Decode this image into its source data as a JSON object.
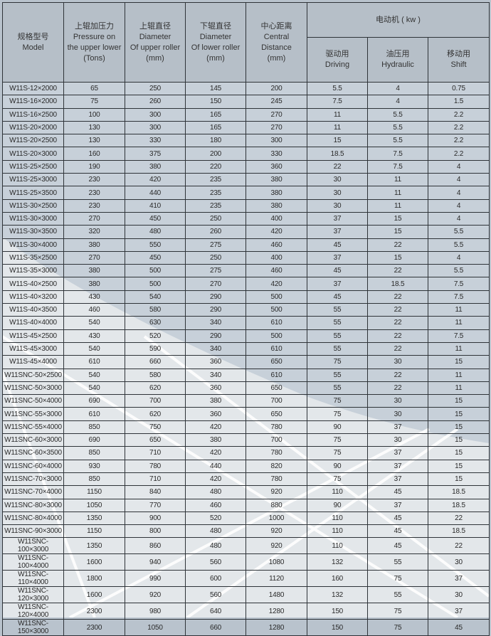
{
  "header": {
    "model": [
      "规格型号",
      "Model"
    ],
    "pressure": [
      "上辊加压力",
      "Pressure on",
      "the upper lower",
      "(Tons)"
    ],
    "upper_diameter": [
      "上辊直径",
      "Diameter",
      "Of upper roller",
      "(mm)"
    ],
    "lower_diameter": [
      "下辊直径",
      "Diameter",
      "Of lower roller",
      "(mm)"
    ],
    "central_distance": [
      "中心距离",
      "Central",
      "Distance",
      "(mm)"
    ],
    "motor": "电动机 ( kw )",
    "driving": [
      "驱动用",
      "Driving"
    ],
    "hydraulic": [
      "油压用",
      "Hydraulic"
    ],
    "shift": [
      "移动用",
      "Shift"
    ]
  },
  "rows": [
    [
      "W11S-12×2000",
      "65",
      "250",
      "145",
      "200",
      "5.5",
      "4",
      "0.75"
    ],
    [
      "W11S-16×2000",
      "75",
      "260",
      "150",
      "245",
      "7.5",
      "4",
      "1.5"
    ],
    [
      "W11S-16×2500",
      "100",
      "300",
      "165",
      "270",
      "11",
      "5.5",
      "2.2"
    ],
    [
      "W11S-20×2000",
      "130",
      "300",
      "165",
      "270",
      "11",
      "5.5",
      "2.2"
    ],
    [
      "W11S-20×2500",
      "130",
      "330",
      "180",
      "300",
      "15",
      "5.5",
      "2.2"
    ],
    [
      "W11S-20×3000",
      "160",
      "375",
      "200",
      "330",
      "18.5",
      "7.5",
      "2.2"
    ],
    [
      "W11S-25×2500",
      "190",
      "380",
      "220",
      "360",
      "22",
      "7.5",
      "4"
    ],
    [
      "W11S-25×3000",
      "230",
      "420",
      "235",
      "380",
      "30",
      "11",
      "4"
    ],
    [
      "W11S-25×3500",
      "230",
      "440",
      "235",
      "380",
      "30",
      "11",
      "4"
    ],
    [
      "W11S-30×2500",
      "230",
      "410",
      "235",
      "380",
      "30",
      "11",
      "4"
    ],
    [
      "W11S-30×3000",
      "270",
      "450",
      "250",
      "400",
      "37",
      "15",
      "4"
    ],
    [
      "W11S-30×3500",
      "320",
      "480",
      "260",
      "420",
      "37",
      "15",
      "5.5"
    ],
    [
      "W11S-30×4000",
      "380",
      "550",
      "275",
      "460",
      "45",
      "22",
      "5.5"
    ],
    [
      "W11S-35×2500",
      "270",
      "450",
      "250",
      "400",
      "37",
      "15",
      "4"
    ],
    [
      "W11S-35×3000",
      "380",
      "500",
      "275",
      "460",
      "45",
      "22",
      "5.5"
    ],
    [
      "W11S-40×2500",
      "380",
      "500",
      "270",
      "420",
      "37",
      "18.5",
      "7.5"
    ],
    [
      "W11S-40×3200",
      "430",
      "540",
      "290",
      "500",
      "45",
      "22",
      "7.5"
    ],
    [
      "W11S-40×3500",
      "460",
      "580",
      "290",
      "500",
      "55",
      "22",
      "11"
    ],
    [
      "W11S-40×4000",
      "540",
      "630",
      "340",
      "610",
      "55",
      "22",
      "11"
    ],
    [
      "W11S-45×2500",
      "430",
      "520",
      "290",
      "500",
      "55",
      "22",
      "7.5"
    ],
    [
      "W11S-45×3000",
      "540",
      "590",
      "340",
      "610",
      "55",
      "22",
      "11"
    ],
    [
      "W11S-45×4000",
      "610",
      "660",
      "360",
      "650",
      "75",
      "30",
      "15"
    ],
    [
      "W11SNC-50×2500",
      "540",
      "580",
      "340",
      "610",
      "55",
      "22",
      "11"
    ],
    [
      "W11SNC-50×3000",
      "540",
      "620",
      "360",
      "650",
      "55",
      "22",
      "11"
    ],
    [
      "W11SNC-50×4000",
      "690",
      "700",
      "380",
      "700",
      "75",
      "30",
      "15"
    ],
    [
      "W11SNC-55×3000",
      "610",
      "620",
      "360",
      "650",
      "75",
      "30",
      "15"
    ],
    [
      "W11SNC-55×4000",
      "850",
      "750",
      "420",
      "780",
      "90",
      "37",
      "15"
    ],
    [
      "W11SNC-60×3000",
      "690",
      "650",
      "380",
      "700",
      "75",
      "30",
      "15"
    ],
    [
      "W11SNC-60×3500",
      "850",
      "710",
      "420",
      "780",
      "75",
      "37",
      "15"
    ],
    [
      "W11SNC-60×4000",
      "930",
      "780",
      "440",
      "820",
      "90",
      "37",
      "15"
    ],
    [
      "W11SNC-70×3000",
      "850",
      "710",
      "420",
      "780",
      "75",
      "37",
      "15"
    ],
    [
      "W11SNC-70×4000",
      "1150",
      "840",
      "480",
      "920",
      "110",
      "45",
      "18.5"
    ],
    [
      "W11SNC-80×3000",
      "1050",
      "770",
      "460",
      "880",
      "90",
      "37",
      "18.5"
    ],
    [
      "W11SNC-80×4000",
      "1350",
      "900",
      "520",
      "1000",
      "110",
      "45",
      "22"
    ],
    [
      "W11SNC-90×3000",
      "1150",
      "800",
      "480",
      "920",
      "110",
      "45",
      "18.5"
    ],
    [
      "W11SNC-100×3000",
      "1350",
      "860",
      "480",
      "920",
      "110",
      "45",
      "22"
    ],
    [
      "W11SNC-100×4000",
      "1600",
      "940",
      "560",
      "1080",
      "132",
      "55",
      "30"
    ],
    [
      "W11SNC-110×4000",
      "1800",
      "990",
      "600",
      "1120",
      "160",
      "75",
      "37"
    ],
    [
      "W11SNC-120×3000",
      "1600",
      "920",
      "560",
      "1480",
      "132",
      "55",
      "30"
    ],
    [
      "W11SNC-120×4000",
      "2300",
      "980",
      "640",
      "1280",
      "150",
      "75",
      "37"
    ],
    [
      "W11SNC-150×3000",
      "2300",
      "1050",
      "660",
      "1280",
      "150",
      "75",
      "45"
    ]
  ]
}
